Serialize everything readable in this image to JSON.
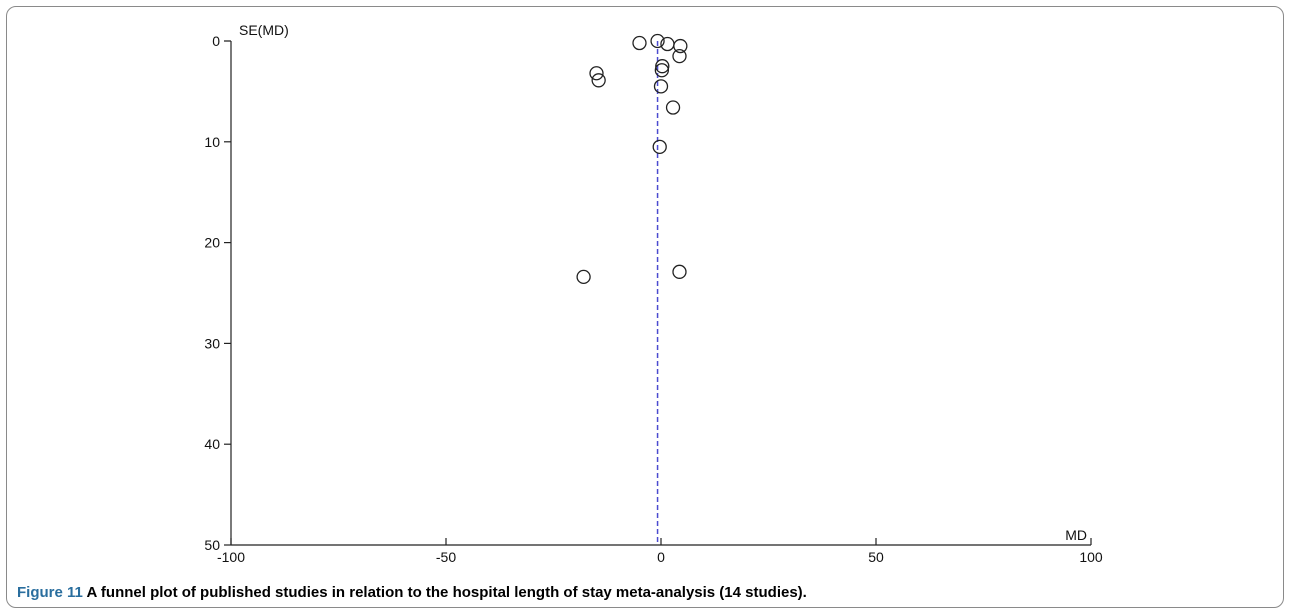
{
  "chart_data": {
    "type": "scatter",
    "ylabel": "SE(MD)",
    "xlabel": "MD",
    "xlim": [
      -100,
      100
    ],
    "ylim": [
      0,
      50
    ],
    "y_inverted": true,
    "xticks": [
      -100,
      -50,
      0,
      50,
      100
    ],
    "yticks": [
      0,
      10,
      20,
      30,
      40,
      50
    ],
    "reference_line_x": -0.8,
    "reference_line_style": "dashed",
    "colors": {
      "reference_line": "#4b4bd0",
      "marker": "#222222",
      "axis": "#222222"
    },
    "grid": false,
    "points": [
      {
        "x": -5.0,
        "y": 0.2
      },
      {
        "x": -0.8,
        "y": 0.0
      },
      {
        "x": 1.5,
        "y": 0.3
      },
      {
        "x": 4.5,
        "y": 0.5
      },
      {
        "x": 4.3,
        "y": 1.5
      },
      {
        "x": 0.3,
        "y": 2.5
      },
      {
        "x": 0.2,
        "y": 2.9
      },
      {
        "x": -15.0,
        "y": 3.2
      },
      {
        "x": -14.5,
        "y": 3.9
      },
      {
        "x": 0.0,
        "y": 4.5
      },
      {
        "x": 2.8,
        "y": 6.6
      },
      {
        "x": -0.3,
        "y": 10.5
      },
      {
        "x": 4.3,
        "y": 22.9
      },
      {
        "x": -18.0,
        "y": 23.4
      }
    ]
  },
  "caption": {
    "figure_number": "Figure 11",
    "text": " A funnel plot of published studies in relation to the hospital length of stay meta-analysis (14 studies)."
  }
}
